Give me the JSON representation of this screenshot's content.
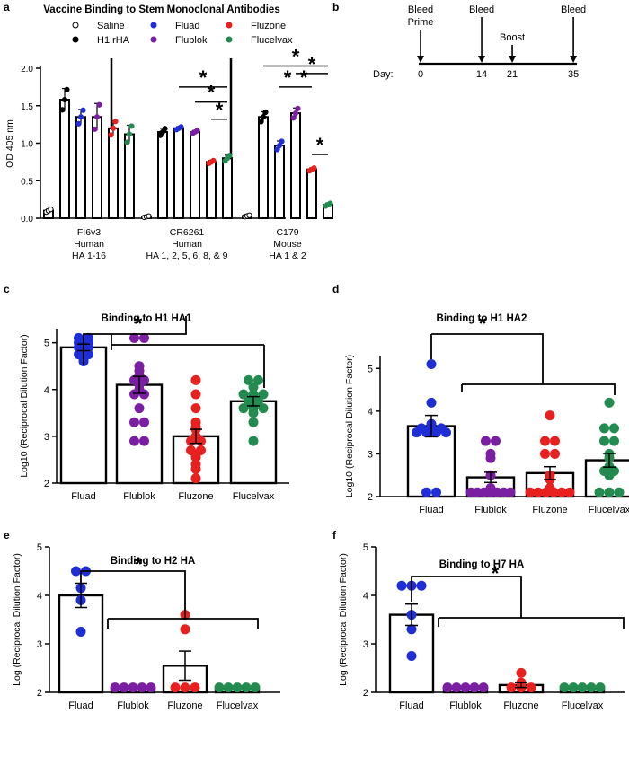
{
  "colors": {
    "saline": "#ffffff",
    "h1rha": "#000000",
    "Fluad": "#1f2ed6",
    "Flublok": "#7b1fa2",
    "Fluzone": "#e8201f",
    "Flucelvax": "#238b4f"
  },
  "panel_labels": {
    "a": "a",
    "b": "b",
    "c": "c",
    "d": "d",
    "e": "e",
    "f": "f"
  },
  "timeline": {
    "events": [
      {
        "label": "Bleed",
        "day": 0
      },
      {
        "label": "Prime",
        "day": 0
      },
      {
        "label": "Bleed",
        "day": 14
      },
      {
        "label": "Boost",
        "day": 21
      },
      {
        "label": "Bleed",
        "day": 35
      }
    ],
    "axis_label": "Day:",
    "ticks": [
      {
        "day": 0,
        "label": "0"
      },
      {
        "day": 14,
        "label": "14"
      },
      {
        "day": 21,
        "label": "21"
      },
      {
        "day": 35,
        "label": "35"
      }
    ]
  },
  "chart_data": [
    {
      "id": "a",
      "type": "bar",
      "title": "Vaccine Binding to Stem Monoclonal Antibodies",
      "ylabel": "OD 405 nm",
      "ylim": [
        0,
        2.0
      ],
      "yticks": [
        "0.0",
        "0.5",
        "1.0",
        "1.5",
        "2.0"
      ],
      "legend": [
        {
          "name": "Saline",
          "color": "saline"
        },
        {
          "name": "Fluad",
          "color": "Fluad"
        },
        {
          "name": "Fluzone",
          "color": "Fluzone"
        },
        {
          "name": "H1 rHA",
          "color": "h1rha"
        },
        {
          "name": "Flublok",
          "color": "Flublok"
        },
        {
          "name": "Flucelvax",
          "color": "Flucelvax"
        }
      ],
      "series_order": [
        "Saline",
        "H1 rHA",
        "Fluad",
        "Flublok",
        "Fluzone",
        "Flucelvax"
      ],
      "groups": [
        {
          "label": [
            "FI6v3",
            "Human",
            "HA 1-16"
          ],
          "values": [
            0.1,
            1.58,
            1.35,
            1.35,
            1.2,
            1.12
          ],
          "errors": [
            0.02,
            0.15,
            0.1,
            0.18,
            0.1,
            0.12
          ]
        },
        {
          "label": [
            "CR6261",
            "Human",
            "HA 1, 2, 5, 6, 8, & 9"
          ],
          "values": [
            0.02,
            1.15,
            1.2,
            1.15,
            0.75,
            0.8
          ],
          "errors": [
            0.01,
            0.05,
            0.02,
            0.02,
            0.02,
            0.04
          ]
        },
        {
          "label": [
            "C179",
            "Mouse",
            "HA 1 & 2"
          ],
          "values": [
            0.03,
            1.35,
            0.97,
            1.4,
            0.65,
            0.18
          ],
          "errors": [
            0.01,
            0.07,
            0.06,
            0.07,
            0.02,
            0.02
          ]
        }
      ],
      "significance_mark": "*"
    },
    {
      "id": "c",
      "type": "bar",
      "title": "Binding to H1 HA1",
      "ylabel": "Log10 (Reciprocal Dilution Factor)",
      "ylim": [
        2,
        5.3
      ],
      "yticks": [
        "2",
        "3",
        "4",
        "5"
      ],
      "categories": [
        "Fluad",
        "Flublok",
        "Fluzone",
        "Flucelvax"
      ],
      "values": [
        4.9,
        4.1,
        3.0,
        3.75
      ],
      "errors": [
        0.07,
        0.18,
        0.15,
        0.1
      ],
      "points": [
        [
          4.6,
          4.65,
          4.7,
          4.75,
          4.8,
          4.85,
          4.9,
          4.95,
          5.0,
          5.0,
          5.05,
          5.1,
          5.1,
          4.9,
          4.75
        ],
        [
          5.1,
          5.1,
          4.5,
          4.4,
          4.3,
          4.2,
          4.2,
          4.1,
          4.0,
          3.9,
          3.9,
          3.6,
          3.3,
          3.3,
          2.9,
          2.9
        ],
        [
          4.2,
          3.9,
          3.6,
          3.3,
          3.2,
          3.15,
          3.0,
          2.9,
          2.9,
          2.7,
          2.7,
          2.6,
          2.55,
          2.4,
          2.3,
          2.1
        ],
        [
          4.2,
          4.2,
          4.05,
          3.9,
          3.9,
          3.9,
          3.75,
          3.75,
          3.6,
          3.6,
          3.6,
          3.5,
          3.3,
          2.9
        ]
      ],
      "significance_mark": "*"
    },
    {
      "id": "d",
      "type": "bar",
      "title": "Binding to H1 HA2",
      "ylabel": "Log10 (Reciprocal Dilution Factor)",
      "ylim": [
        2,
        5.3
      ],
      "yticks": [
        "2",
        "3",
        "4",
        "5"
      ],
      "categories": [
        "Fluad",
        "Flublok",
        "Fluzone",
        "Flucelvax"
      ],
      "values": [
        3.65,
        2.45,
        2.55,
        2.85
      ],
      "errors": [
        0.25,
        0.12,
        0.15,
        0.16
      ],
      "points": [
        [
          5.1,
          4.2,
          3.7,
          3.6,
          3.6,
          3.6,
          3.55,
          3.5,
          3.5,
          3.5,
          3.5,
          2.1,
          2.1
        ],
        [
          3.3,
          3.3,
          3.0,
          2.9,
          2.5,
          2.2,
          2.1,
          2.1,
          2.1,
          2.1,
          2.1,
          2.1,
          2.1
        ],
        [
          3.9,
          3.3,
          3.3,
          3.0,
          3.0,
          2.5,
          2.4,
          2.2,
          2.1,
          2.1,
          2.1,
          2.1,
          2.1,
          2.1
        ],
        [
          4.2,
          3.6,
          3.6,
          3.3,
          3.3,
          3.0,
          2.9,
          2.7,
          2.6,
          2.6,
          2.5,
          2.1,
          2.1,
          2.1
        ]
      ],
      "significance_mark": "*"
    },
    {
      "id": "e",
      "type": "bar",
      "title": "Binding to H2 HA",
      "ylabel": "Log (Reciprocal Dilution Factor)",
      "ylim": [
        2,
        5
      ],
      "yticks": [
        "2",
        "3",
        "4",
        "5"
      ],
      "categories": [
        "Fluad",
        "Flublok",
        "Fluzone",
        "Flucelvax"
      ],
      "values": [
        4.0,
        2.1,
        2.55,
        2.1
      ],
      "errors": [
        0.25,
        0.0,
        0.3,
        0.0
      ],
      "points": [
        [
          4.5,
          4.5,
          4.15,
          3.9,
          3.25
        ],
        [
          2.1,
          2.1,
          2.1,
          2.1,
          2.1
        ],
        [
          3.6,
          3.3,
          2.1,
          2.1,
          2.1
        ],
        [
          2.1,
          2.1,
          2.1,
          2.1,
          2.1
        ]
      ],
      "significance_mark": "*"
    },
    {
      "id": "f",
      "type": "bar",
      "title": "Binding to H7 HA",
      "ylabel": "Log (Reciprocal Dilution Factor)",
      "ylim": [
        2,
        5
      ],
      "yticks": [
        "2",
        "3",
        "4",
        "5"
      ],
      "categories": [
        "Fluad",
        "Flublok",
        "Fluzone",
        "Flucelvax"
      ],
      "values": [
        3.6,
        2.1,
        2.15,
        2.1
      ],
      "errors": [
        0.22,
        0.0,
        0.05,
        0.0
      ],
      "points": [
        [
          4.2,
          4.2,
          4.2,
          3.6,
          3.3,
          2.75
        ],
        [
          2.1,
          2.1,
          2.1,
          2.1,
          2.1
        ],
        [
          2.4,
          2.2,
          2.1,
          2.1,
          2.1
        ],
        [
          2.1,
          2.1,
          2.1,
          2.1,
          2.1
        ]
      ],
      "significance_mark": "*"
    }
  ]
}
